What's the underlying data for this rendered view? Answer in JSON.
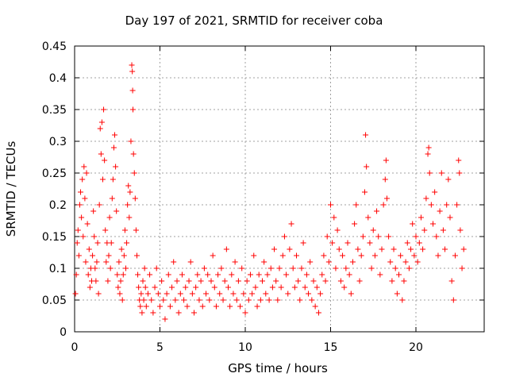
{
  "chart_data": {
    "type": "scatter",
    "title": "Day 197 of 2021, SRMTID for receiver coba",
    "xlabel": "GPS time / hours",
    "ylabel": "SRMTID / TECUs",
    "xlim": [
      0,
      24
    ],
    "ylim": [
      0,
      0.45
    ],
    "x_ticks": [
      0,
      5,
      10,
      15,
      20
    ],
    "y_ticks": [
      0,
      0.05,
      0.1,
      0.15,
      0.2,
      0.25,
      0.3,
      0.35,
      0.4,
      0.45
    ],
    "grid": true,
    "marker": "+",
    "color": "#ff0000",
    "series": [
      {
        "name": "SRMTID",
        "points": [
          [
            0.05,
            0.06
          ],
          [
            0.1,
            0.09
          ],
          [
            0.15,
            0.14
          ],
          [
            0.2,
            0.16
          ],
          [
            0.25,
            0.12
          ],
          [
            0.3,
            0.2
          ],
          [
            0.35,
            0.22
          ],
          [
            0.4,
            0.18
          ],
          [
            0.45,
            0.24
          ],
          [
            0.5,
            0.15
          ],
          [
            0.55,
            0.26
          ],
          [
            0.6,
            0.21
          ],
          [
            0.65,
            0.11
          ],
          [
            0.7,
            0.25
          ],
          [
            0.75,
            0.17
          ],
          [
            0.8,
            0.09
          ],
          [
            0.85,
            0.13
          ],
          [
            0.9,
            0.07
          ],
          [
            0.95,
            0.1
          ],
          [
            1.0,
            0.08
          ],
          [
            1.05,
            0.12
          ],
          [
            1.1,
            0.19
          ],
          [
            1.15,
            0.15
          ],
          [
            1.2,
            0.1
          ],
          [
            1.25,
            0.08
          ],
          [
            1.3,
            0.11
          ],
          [
            1.35,
            0.14
          ],
          [
            1.4,
            0.06
          ],
          [
            1.45,
            0.2
          ],
          [
            1.5,
            0.32
          ],
          [
            1.55,
            0.28
          ],
          [
            1.6,
            0.33
          ],
          [
            1.65,
            0.24
          ],
          [
            1.7,
            0.35
          ],
          [
            1.75,
            0.27
          ],
          [
            1.8,
            0.16
          ],
          [
            1.85,
            0.11
          ],
          [
            1.9,
            0.14
          ],
          [
            1.95,
            0.08
          ],
          [
            2.0,
            0.12
          ],
          [
            2.05,
            0.18
          ],
          [
            2.1,
            0.1
          ],
          [
            2.15,
            0.14
          ],
          [
            2.2,
            0.21
          ],
          [
            2.25,
            0.24
          ],
          [
            2.3,
            0.29
          ],
          [
            2.35,
            0.31
          ],
          [
            2.4,
            0.26
          ],
          [
            2.45,
            0.19
          ],
          [
            2.5,
            0.09
          ],
          [
            2.55,
            0.07
          ],
          [
            2.6,
            0.11
          ],
          [
            2.65,
            0.06
          ],
          [
            2.7,
            0.08
          ],
          [
            2.75,
            0.13
          ],
          [
            2.8,
            0.05
          ],
          [
            2.85,
            0.09
          ],
          [
            2.9,
            0.12
          ],
          [
            2.95,
            0.16
          ],
          [
            3.0,
            0.1
          ],
          [
            3.05,
            0.14
          ],
          [
            3.1,
            0.2
          ],
          [
            3.15,
            0.23
          ],
          [
            3.2,
            0.18
          ],
          [
            3.25,
            0.22
          ],
          [
            3.3,
            0.3
          ],
          [
            3.35,
            0.42
          ],
          [
            3.38,
            0.41
          ],
          [
            3.4,
            0.38
          ],
          [
            3.42,
            0.35
          ],
          [
            3.45,
            0.28
          ],
          [
            3.5,
            0.25
          ],
          [
            3.55,
            0.21
          ],
          [
            3.6,
            0.16
          ],
          [
            3.65,
            0.12
          ],
          [
            3.7,
            0.09
          ],
          [
            3.75,
            0.07
          ],
          [
            3.8,
            0.05
          ],
          [
            3.85,
            0.04
          ],
          [
            3.9,
            0.06
          ],
          [
            3.95,
            0.03
          ],
          [
            4.0,
            0.08
          ],
          [
            4.05,
            0.05
          ],
          [
            4.1,
            0.1
          ],
          [
            4.15,
            0.07
          ],
          [
            4.2,
            0.04
          ],
          [
            4.3,
            0.06
          ],
          [
            4.4,
            0.09
          ],
          [
            4.5,
            0.05
          ],
          [
            4.6,
            0.03
          ],
          [
            4.7,
            0.07
          ],
          [
            4.8,
            0.1
          ],
          [
            4.9,
            0.06
          ],
          [
            5.0,
            0.04
          ],
          [
            5.1,
            0.08
          ],
          [
            5.2,
            0.05
          ],
          [
            5.3,
            0.02
          ],
          [
            5.4,
            0.06
          ],
          [
            5.5,
            0.09
          ],
          [
            5.6,
            0.04
          ],
          [
            5.7,
            0.07
          ],
          [
            5.8,
            0.11
          ],
          [
            5.9,
            0.05
          ],
          [
            6.0,
            0.08
          ],
          [
            6.1,
            0.03
          ],
          [
            6.2,
            0.06
          ],
          [
            6.3,
            0.09
          ],
          [
            6.4,
            0.05
          ],
          [
            6.5,
            0.07
          ],
          [
            6.6,
            0.04
          ],
          [
            6.7,
            0.08
          ],
          [
            6.8,
            0.11
          ],
          [
            6.9,
            0.06
          ],
          [
            7.0,
            0.03
          ],
          [
            7.1,
            0.07
          ],
          [
            7.2,
            0.09
          ],
          [
            7.3,
            0.05
          ],
          [
            7.4,
            0.08
          ],
          [
            7.5,
            0.04
          ],
          [
            7.6,
            0.1
          ],
          [
            7.7,
            0.06
          ],
          [
            7.8,
            0.09
          ],
          [
            7.9,
            0.05
          ],
          [
            8.0,
            0.08
          ],
          [
            8.1,
            0.12
          ],
          [
            8.2,
            0.07
          ],
          [
            8.3,
            0.04
          ],
          [
            8.4,
            0.09
          ],
          [
            8.5,
            0.06
          ],
          [
            8.6,
            0.1
          ],
          [
            8.7,
            0.05
          ],
          [
            8.8,
            0.08
          ],
          [
            8.9,
            0.13
          ],
          [
            9.0,
            0.07
          ],
          [
            9.1,
            0.04
          ],
          [
            9.2,
            0.09
          ],
          [
            9.3,
            0.06
          ],
          [
            9.4,
            0.11
          ],
          [
            9.5,
            0.05
          ],
          [
            9.6,
            0.08
          ],
          [
            9.7,
            0.04
          ],
          [
            9.8,
            0.1
          ],
          [
            9.9,
            0.06
          ],
          [
            10.0,
            0.03
          ],
          [
            10.1,
            0.08
          ],
          [
            10.2,
            0.05
          ],
          [
            10.3,
            0.09
          ],
          [
            10.4,
            0.06
          ],
          [
            10.5,
            0.12
          ],
          [
            10.6,
            0.07
          ],
          [
            10.7,
            0.04
          ],
          [
            10.8,
            0.09
          ],
          [
            10.9,
            0.05
          ],
          [
            11.0,
            0.08
          ],
          [
            11.1,
            0.11
          ],
          [
            11.2,
            0.06
          ],
          [
            11.3,
            0.09
          ],
          [
            11.4,
            0.05
          ],
          [
            11.5,
            0.1
          ],
          [
            11.6,
            0.07
          ],
          [
            11.7,
            0.13
          ],
          [
            11.8,
            0.08
          ],
          [
            11.9,
            0.05
          ],
          [
            12.0,
            0.1
          ],
          [
            12.1,
            0.07
          ],
          [
            12.2,
            0.12
          ],
          [
            12.3,
            0.15
          ],
          [
            12.4,
            0.09
          ],
          [
            12.5,
            0.06
          ],
          [
            12.6,
            0.13
          ],
          [
            12.7,
            0.17
          ],
          [
            12.8,
            0.1
          ],
          [
            12.9,
            0.07
          ],
          [
            13.0,
            0.12
          ],
          [
            13.1,
            0.08
          ],
          [
            13.2,
            0.05
          ],
          [
            13.3,
            0.1
          ],
          [
            13.4,
            0.14
          ],
          [
            13.5,
            0.07
          ],
          [
            13.6,
            0.09
          ],
          [
            13.7,
            0.06
          ],
          [
            13.8,
            0.11
          ],
          [
            13.9,
            0.05
          ],
          [
            14.0,
            0.08
          ],
          [
            14.1,
            0.04
          ],
          [
            14.2,
            0.07
          ],
          [
            14.3,
            0.03
          ],
          [
            14.4,
            0.06
          ],
          [
            14.5,
            0.09
          ],
          [
            14.6,
            0.12
          ],
          [
            14.7,
            0.08
          ],
          [
            14.8,
            0.15
          ],
          [
            14.9,
            0.11
          ],
          [
            15.0,
            0.2
          ],
          [
            15.1,
            0.14
          ],
          [
            15.2,
            0.18
          ],
          [
            15.3,
            0.1
          ],
          [
            15.4,
            0.16
          ],
          [
            15.5,
            0.13
          ],
          [
            15.6,
            0.08
          ],
          [
            15.7,
            0.12
          ],
          [
            15.8,
            0.07
          ],
          [
            15.9,
            0.1
          ],
          [
            16.0,
            0.14
          ],
          [
            16.1,
            0.09
          ],
          [
            16.2,
            0.06
          ],
          [
            16.3,
            0.11
          ],
          [
            16.4,
            0.17
          ],
          [
            16.5,
            0.2
          ],
          [
            16.6,
            0.13
          ],
          [
            16.7,
            0.08
          ],
          [
            16.8,
            0.12
          ],
          [
            16.9,
            0.15
          ],
          [
            17.0,
            0.22
          ],
          [
            17.05,
            0.31
          ],
          [
            17.1,
            0.26
          ],
          [
            17.2,
            0.18
          ],
          [
            17.3,
            0.14
          ],
          [
            17.4,
            0.1
          ],
          [
            17.5,
            0.16
          ],
          [
            17.6,
            0.12
          ],
          [
            17.7,
            0.19
          ],
          [
            17.8,
            0.15
          ],
          [
            17.9,
            0.09
          ],
          [
            18.0,
            0.13
          ],
          [
            18.1,
            0.2
          ],
          [
            18.2,
            0.24
          ],
          [
            18.25,
            0.27
          ],
          [
            18.3,
            0.21
          ],
          [
            18.4,
            0.15
          ],
          [
            18.5,
            0.11
          ],
          [
            18.6,
            0.08
          ],
          [
            18.7,
            0.13
          ],
          [
            18.8,
            0.1
          ],
          [
            18.9,
            0.06
          ],
          [
            19.0,
            0.09
          ],
          [
            19.1,
            0.12
          ],
          [
            19.2,
            0.05
          ],
          [
            19.3,
            0.08
          ],
          [
            19.4,
            0.11
          ],
          [
            19.5,
            0.14
          ],
          [
            19.6,
            0.1
          ],
          [
            19.7,
            0.13
          ],
          [
            19.8,
            0.17
          ],
          [
            19.9,
            0.12
          ],
          [
            20.0,
            0.15
          ],
          [
            20.1,
            0.11
          ],
          [
            20.2,
            0.14
          ],
          [
            20.3,
            0.18
          ],
          [
            20.4,
            0.13
          ],
          [
            20.5,
            0.16
          ],
          [
            20.6,
            0.21
          ],
          [
            20.7,
            0.28
          ],
          [
            20.75,
            0.29
          ],
          [
            20.8,
            0.25
          ],
          [
            20.9,
            0.2
          ],
          [
            21.0,
            0.17
          ],
          [
            21.1,
            0.22
          ],
          [
            21.2,
            0.15
          ],
          [
            21.3,
            0.12
          ],
          [
            21.4,
            0.19
          ],
          [
            21.5,
            0.25
          ],
          [
            21.6,
            0.16
          ],
          [
            21.7,
            0.13
          ],
          [
            21.8,
            0.2
          ],
          [
            21.9,
            0.24
          ],
          [
            22.0,
            0.18
          ],
          [
            22.1,
            0.08
          ],
          [
            22.2,
            0.05
          ],
          [
            22.3,
            0.12
          ],
          [
            22.4,
            0.2
          ],
          [
            22.5,
            0.27
          ],
          [
            22.55,
            0.25
          ],
          [
            22.6,
            0.16
          ],
          [
            22.7,
            0.1
          ],
          [
            22.8,
            0.13
          ]
        ]
      }
    ]
  }
}
